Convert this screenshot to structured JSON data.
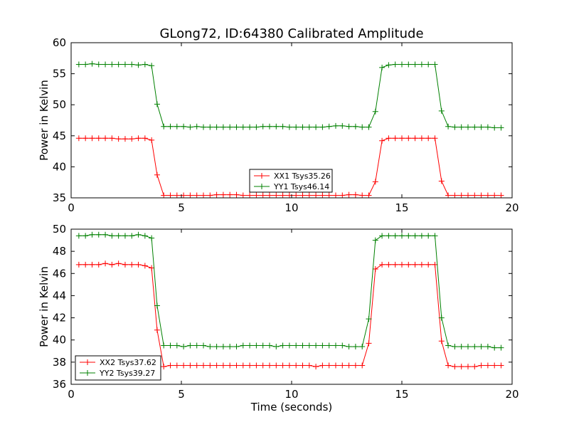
{
  "figure": {
    "title": "GLong72, ID:64380 Calibrated Amplitude"
  },
  "chart_data": [
    {
      "type": "line",
      "title": "GLong72, ID:64380 Calibrated Amplitude",
      "xlabel": "",
      "ylabel": "Power in Kelvin",
      "xlim": [
        0,
        20
      ],
      "ylim": [
        35,
        60
      ],
      "xticks": [
        "0",
        "5",
        "10",
        "15",
        "20"
      ],
      "yticks": [
        "35",
        "40",
        "45",
        "50",
        "55",
        "60"
      ],
      "grid": false,
      "legend_position": "lower-center",
      "x": [
        0.35,
        0.65,
        0.95,
        1.25,
        1.55,
        1.85,
        2.15,
        2.45,
        2.75,
        3.05,
        3.35,
        3.65,
        3.9,
        4.2,
        4.5,
        4.8,
        5.1,
        5.4,
        5.7,
        6.0,
        6.3,
        6.6,
        6.9,
        7.2,
        7.5,
        7.8,
        8.1,
        8.4,
        8.7,
        9.0,
        9.3,
        9.6,
        9.9,
        10.2,
        10.5,
        10.8,
        11.1,
        11.4,
        11.7,
        12.0,
        12.3,
        12.6,
        12.9,
        13.2,
        13.5,
        13.8,
        14.1,
        14.4,
        14.7,
        15.0,
        15.3,
        15.6,
        15.9,
        16.2,
        16.5,
        16.8,
        17.1,
        17.4,
        17.7,
        18.0,
        18.3,
        18.6,
        18.9,
        19.2,
        19.5
      ],
      "series": [
        {
          "name": "XX1 Tsys35.26",
          "color": "#ff0000",
          "values": [
            44.6,
            44.6,
            44.6,
            44.6,
            44.6,
            44.6,
            44.5,
            44.5,
            44.5,
            44.6,
            44.6,
            44.3,
            38.7,
            35.4,
            35.4,
            35.4,
            35.4,
            35.4,
            35.4,
            35.4,
            35.4,
            35.5,
            35.5,
            35.5,
            35.5,
            35.4,
            35.4,
            35.4,
            35.4,
            35.4,
            35.4,
            35.4,
            35.4,
            35.4,
            35.4,
            35.4,
            35.4,
            35.4,
            35.4,
            35.4,
            35.4,
            35.5,
            35.5,
            35.4,
            35.4,
            37.6,
            44.2,
            44.6,
            44.6,
            44.6,
            44.6,
            44.6,
            44.6,
            44.6,
            44.6,
            37.7,
            35.4,
            35.4,
            35.4,
            35.4,
            35.4,
            35.4,
            35.4,
            35.4,
            35.4
          ]
        },
        {
          "name": "YY1 Tsys46.14",
          "color": "#008000",
          "values": [
            56.5,
            56.5,
            56.6,
            56.5,
            56.5,
            56.5,
            56.5,
            56.5,
            56.5,
            56.4,
            56.5,
            56.3,
            50.1,
            46.5,
            46.5,
            46.5,
            46.5,
            46.4,
            46.5,
            46.4,
            46.4,
            46.4,
            46.4,
            46.4,
            46.4,
            46.4,
            46.4,
            46.4,
            46.5,
            46.5,
            46.5,
            46.5,
            46.4,
            46.4,
            46.4,
            46.4,
            46.4,
            46.4,
            46.5,
            46.6,
            46.6,
            46.5,
            46.5,
            46.4,
            46.4,
            48.9,
            56.0,
            56.4,
            56.5,
            56.5,
            56.5,
            56.5,
            56.5,
            56.5,
            56.5,
            49.0,
            46.5,
            46.4,
            46.4,
            46.4,
            46.4,
            46.4,
            46.4,
            46.3,
            46.3
          ]
        }
      ]
    },
    {
      "type": "line",
      "title": "",
      "xlabel": "Time (seconds)",
      "ylabel": "Power in Kelvin",
      "xlim": [
        0,
        20
      ],
      "ylim": [
        36,
        50
      ],
      "xticks": [
        "0",
        "5",
        "10",
        "15",
        "20"
      ],
      "yticks": [
        "36",
        "38",
        "40",
        "42",
        "44",
        "46",
        "48",
        "50"
      ],
      "grid": false,
      "legend_position": "lower-left",
      "x": [
        0.35,
        0.65,
        0.95,
        1.25,
        1.55,
        1.85,
        2.15,
        2.45,
        2.75,
        3.05,
        3.35,
        3.65,
        3.9,
        4.2,
        4.5,
        4.8,
        5.1,
        5.4,
        5.7,
        6.0,
        6.3,
        6.6,
        6.9,
        7.2,
        7.5,
        7.8,
        8.1,
        8.4,
        8.7,
        9.0,
        9.3,
        9.6,
        9.9,
        10.2,
        10.5,
        10.8,
        11.1,
        11.4,
        11.7,
        12.0,
        12.3,
        12.6,
        12.9,
        13.2,
        13.5,
        13.8,
        14.1,
        14.4,
        14.7,
        15.0,
        15.3,
        15.6,
        15.9,
        16.2,
        16.5,
        16.8,
        17.1,
        17.4,
        17.7,
        18.0,
        18.3,
        18.6,
        18.9,
        19.2,
        19.5
      ],
      "series": [
        {
          "name": "XX2 Tsys37.62",
          "color": "#ff0000",
          "values": [
            46.8,
            46.8,
            46.8,
            46.8,
            46.9,
            46.8,
            46.9,
            46.8,
            46.8,
            46.8,
            46.7,
            46.5,
            40.9,
            37.6,
            37.7,
            37.7,
            37.7,
            37.7,
            37.7,
            37.7,
            37.7,
            37.7,
            37.7,
            37.7,
            37.7,
            37.7,
            37.7,
            37.7,
            37.7,
            37.7,
            37.7,
            37.7,
            37.7,
            37.7,
            37.7,
            37.7,
            37.6,
            37.7,
            37.7,
            37.7,
            37.7,
            37.7,
            37.7,
            37.7,
            39.7,
            46.4,
            46.8,
            46.8,
            46.8,
            46.8,
            46.8,
            46.8,
            46.8,
            46.8,
            46.8,
            39.9,
            37.7,
            37.6,
            37.6,
            37.6,
            37.6,
            37.7,
            37.7,
            37.7,
            37.7
          ]
        },
        {
          "name": "YY2 Tsys39.27",
          "color": "#008000",
          "values": [
            49.4,
            49.4,
            49.5,
            49.5,
            49.5,
            49.4,
            49.4,
            49.4,
            49.4,
            49.5,
            49.4,
            49.2,
            43.1,
            39.5,
            39.5,
            39.5,
            39.4,
            39.5,
            39.5,
            39.5,
            39.4,
            39.4,
            39.4,
            39.4,
            39.4,
            39.5,
            39.5,
            39.5,
            39.5,
            39.5,
            39.4,
            39.5,
            39.5,
            39.5,
            39.5,
            39.5,
            39.5,
            39.5,
            39.5,
            39.5,
            39.5,
            39.4,
            39.4,
            39.4,
            41.9,
            49.0,
            49.4,
            49.4,
            49.4,
            49.4,
            49.4,
            49.4,
            49.4,
            49.4,
            49.4,
            42.0,
            39.5,
            39.4,
            39.4,
            39.4,
            39.4,
            39.4,
            39.4,
            39.3,
            39.3
          ]
        }
      ]
    }
  ]
}
